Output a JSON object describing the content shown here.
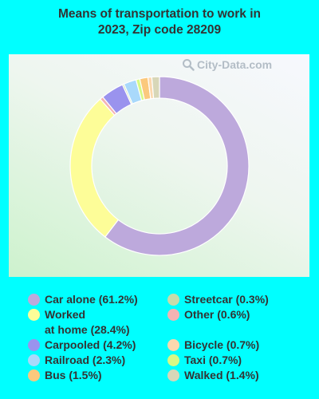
{
  "title": "Means of transportation to work in 2023, Zip code 28209",
  "watermark": "City-Data.com",
  "chart_data": {
    "type": "pie",
    "donut": true,
    "title": "Means of transportation to work in 2023, Zip code 28209",
    "slices": [
      {
        "label": "Car alone",
        "value": 61.2,
        "color": "#bda9dc"
      },
      {
        "label": "Worked at home",
        "value": 28.4,
        "color": "#fdfd98"
      },
      {
        "label": "Other",
        "value": 0.6,
        "color": "#f4b3b3"
      },
      {
        "label": "Carpooled",
        "value": 4.2,
        "color": "#9a93ee"
      },
      {
        "label": "Streetcar",
        "value": 0.3,
        "color": "#c7dcaa"
      },
      {
        "label": "Railroad",
        "value": 2.3,
        "color": "#a9d9fb"
      },
      {
        "label": "Taxi",
        "value": 0.7,
        "color": "#d6f985"
      },
      {
        "label": "Bus",
        "value": 1.5,
        "color": "#fbc97d"
      },
      {
        "label": "Bicycle",
        "value": 0.7,
        "color": "#fbd8ae"
      },
      {
        "label": "Walked",
        "value": 1.4,
        "color": "#d8d7b8"
      }
    ],
    "legend_placement": "bottom"
  },
  "legend": [
    {
      "label": "Car alone (61.2%)",
      "color": "#bda9dc"
    },
    {
      "label": "Worked\nat home (28.4%)",
      "color": "#fdfd98"
    },
    {
      "label": "Carpooled (4.2%)",
      "color": "#9a93ee"
    },
    {
      "label": "Railroad (2.3%)",
      "color": "#a9d9fb"
    },
    {
      "label": "Bus (1.5%)",
      "color": "#fbc97d"
    },
    {
      "label": "Streetcar (0.3%)",
      "color": "#c7dcaa"
    },
    {
      "label": "Other (0.6%)",
      "color": "#f4b3b3"
    },
    {
      "label": "Bicycle (0.7%)",
      "color": "#fbd8ae"
    },
    {
      "label": "Taxi (0.7%)",
      "color": "#d6f985"
    },
    {
      "label": "Walked (1.4%)",
      "color": "#d8d7b8"
    }
  ]
}
